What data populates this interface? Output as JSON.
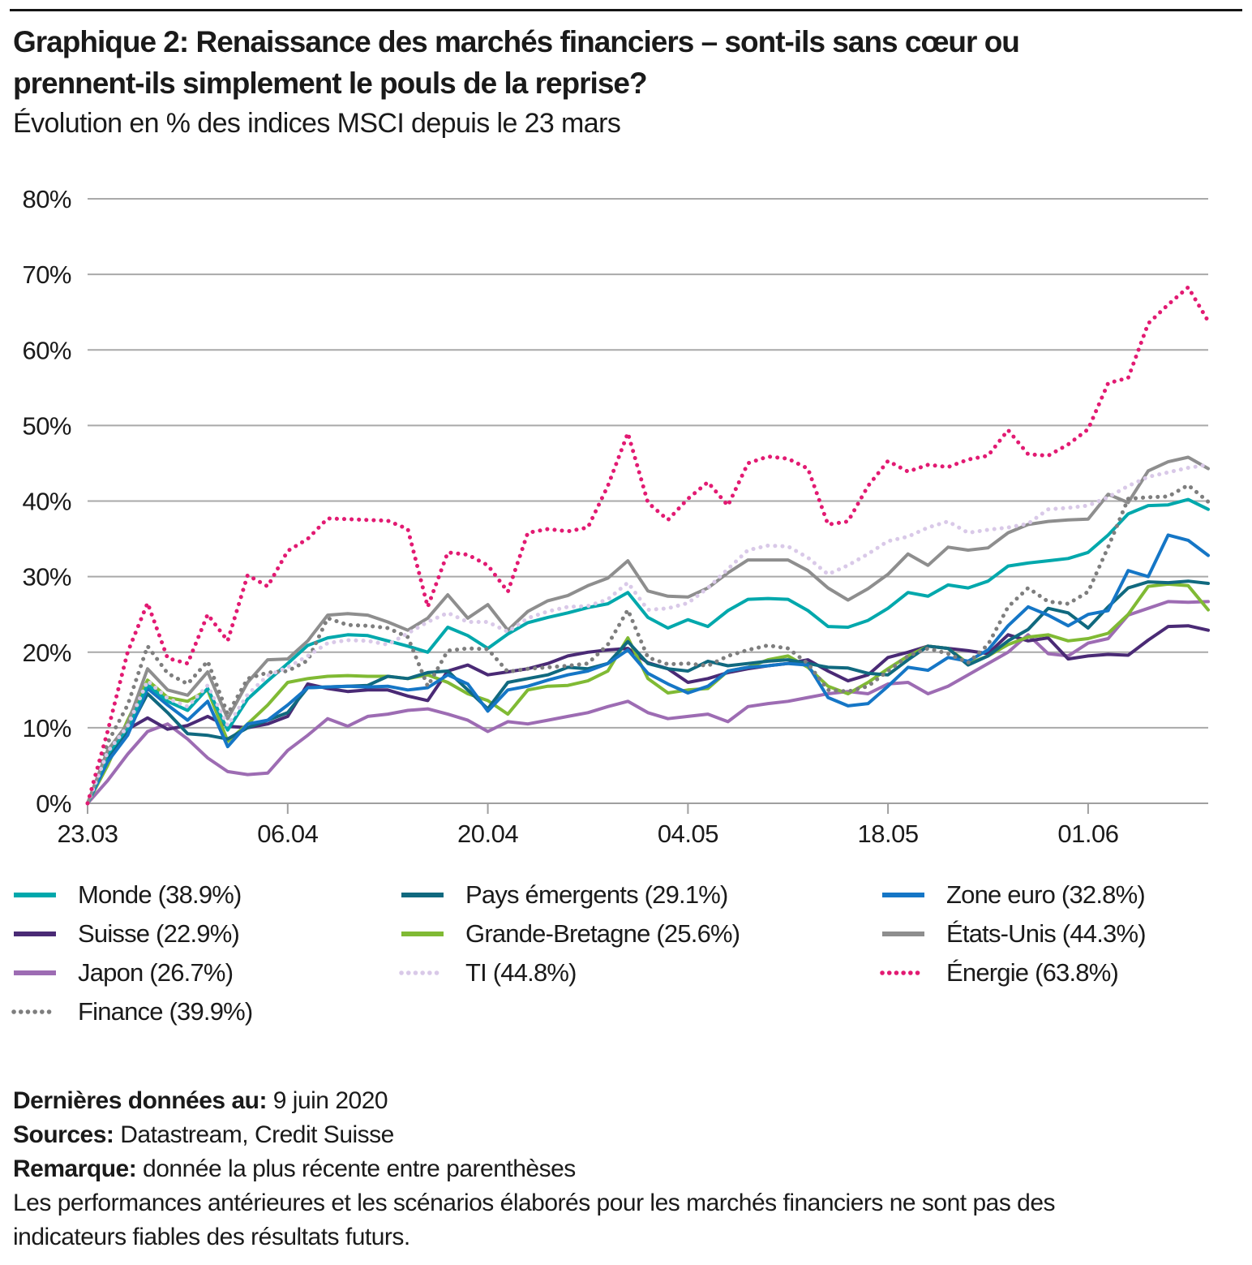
{
  "page": {
    "title_line1": "Graphique 2: Renaissance des marchés financiers – sont-ils sans cœur ou",
    "title_line2": "prennent-ils simplement le pouls de la reprise?",
    "subtitle": "Évolution en % des indices MSCI depuis le 23 mars"
  },
  "chart_data": {
    "type": "line",
    "title": "Graphique 2: Renaissance des marchés financiers – sont-ils sans cœur ou prennent-ils simplement le pouls de la reprise?",
    "subtitle": "Évolution en % des indices MSCI depuis le 23 mars",
    "xlabel": "",
    "ylabel": "",
    "ylim": [
      0,
      80
    ],
    "grid": true,
    "legend_position": "bottom",
    "n_points": 57,
    "x_unit": "jours ouvrés depuis le 23.03.2020 (dernier point: 09.06.2020)",
    "yticks": [
      {
        "value": 0,
        "label": "0%"
      },
      {
        "value": 10,
        "label": "10%"
      },
      {
        "value": 20,
        "label": "20%"
      },
      {
        "value": 30,
        "label": "30%"
      },
      {
        "value": 40,
        "label": "40%"
      },
      {
        "value": 50,
        "label": "50%"
      },
      {
        "value": 60,
        "label": "60%"
      },
      {
        "value": 70,
        "label": "70%"
      },
      {
        "value": 80,
        "label": "80%"
      }
    ],
    "xticks": [
      {
        "day": 0,
        "label": "23.03"
      },
      {
        "day": 10,
        "label": "06.04"
      },
      {
        "day": 20,
        "label": "20.04"
      },
      {
        "day": 30,
        "label": "04.05"
      },
      {
        "day": 40,
        "label": "18.05"
      },
      {
        "day": 50,
        "label": "01.06"
      }
    ],
    "draw_order": [
      "Japon",
      "Suisse",
      "Grande-Bretagne",
      "Pays émergents",
      "Zone euro",
      "Monde",
      "États-Unis",
      "Finance",
      "TI",
      "Énergie"
    ],
    "legend_columns": [
      [
        "Monde",
        "Suisse",
        "Japon",
        "Finance"
      ],
      [
        "Pays émergents",
        "Grande-Bretagne",
        "TI"
      ],
      [
        "Zone euro",
        "États-Unis",
        "Énergie"
      ]
    ],
    "series": [
      {
        "name": "Monde",
        "label": "Monde (38.9%)",
        "final_value": 38.9,
        "color": "#00a8ac",
        "dotted": false,
        "values": [
          0,
          6.5,
          10,
          15.7,
          13.5,
          12.3,
          15.2,
          9.7,
          13.8,
          16.2,
          18.5,
          20.9,
          21.9,
          22.3,
          22.2,
          21.5,
          20.8,
          20,
          23.3,
          22.2,
          20.5,
          22.4,
          23.9,
          24.6,
          25.2,
          25.9,
          26.4,
          27.9,
          24.6,
          23.2,
          24.3,
          23.4,
          25.5,
          27,
          27.1,
          27,
          25.5,
          23.4,
          23.3,
          24.2,
          25.8,
          27.9,
          27.4,
          28.9,
          28.5,
          29.4,
          31.4,
          31.8,
          32.1,
          32.4,
          33.2,
          35.5,
          38.3,
          39.4,
          39.5,
          40.2,
          38.9
        ]
      },
      {
        "name": "Pays émergents",
        "label": "Pays émergents (29.1%)",
        "final_value": 29.1,
        "color": "#10697f",
        "dotted": false,
        "values": [
          0,
          6,
          9.5,
          14.5,
          12,
          9.2,
          9,
          8.5,
          10,
          11,
          12,
          15.3,
          15.4,
          15.5,
          15.6,
          16.8,
          16.5,
          17.3,
          17.5,
          15,
          12.5,
          16,
          16.5,
          17,
          18,
          17.8,
          18.5,
          21.4,
          18.5,
          17.8,
          17.5,
          18.8,
          18.2,
          18.5,
          18.8,
          19,
          18.5,
          18,
          17.9,
          17.2,
          17,
          19,
          20.8,
          20.5,
          18.3,
          19.5,
          21.5,
          23,
          25.8,
          25.2,
          23.2,
          26,
          28.5,
          29.3,
          29.2,
          29.4,
          29.1
        ]
      },
      {
        "name": "Zone euro",
        "label": "Zone euro (32.8%)",
        "final_value": 32.8,
        "color": "#1576c6",
        "dotted": false,
        "values": [
          0,
          5.5,
          9,
          15.2,
          13,
          11,
          13.5,
          7.5,
          10.5,
          11,
          13,
          15.3,
          15.4,
          15.5,
          15.4,
          15.5,
          15,
          15.3,
          17,
          15.8,
          12.2,
          15,
          15.5,
          16.3,
          17,
          17.5,
          18.5,
          20.3,
          17.2,
          15.8,
          14.6,
          15.5,
          17.5,
          18,
          18.2,
          18.5,
          18.3,
          14,
          12.9,
          13.2,
          15.5,
          18,
          17.6,
          19.3,
          18.8,
          20.3,
          23.5,
          26,
          24.9,
          23.5,
          25,
          25.5,
          30.8,
          30,
          35.5,
          34.8,
          32.8
        ]
      },
      {
        "name": "Suisse",
        "label": "Suisse (22.9%)",
        "final_value": 22.9,
        "color": "#4a2a75",
        "dotted": false,
        "values": [
          0,
          6,
          9.8,
          11.3,
          9.8,
          10.3,
          11.5,
          10.2,
          10,
          10.5,
          11.5,
          15.8,
          15.2,
          14.8,
          15,
          15,
          14.2,
          13.6,
          17.5,
          18.3,
          17,
          17.4,
          17.8,
          18.5,
          19.5,
          20,
          20.3,
          20.5,
          18.6,
          17.8,
          16,
          16.5,
          17.3,
          17.8,
          18.2,
          18.5,
          19,
          17.5,
          16.2,
          17,
          19.3,
          20,
          20.8,
          20.5,
          20.2,
          19.8,
          22.3,
          21.5,
          21.9,
          19.1,
          19.5,
          19.7,
          19.6,
          21.6,
          23.4,
          23.5,
          22.9
        ]
      },
      {
        "name": "Grande-Bretagne",
        "label": "Grande-Bretagne (25.6%)",
        "final_value": 25.6,
        "color": "#80ba34",
        "dotted": false,
        "values": [
          0,
          5,
          11,
          16.3,
          14,
          13.5,
          15,
          8.2,
          10.5,
          13,
          16,
          16.5,
          16.8,
          16.9,
          16.8,
          16.8,
          16.5,
          17,
          16,
          14.5,
          13.6,
          11.8,
          15,
          15.5,
          15.6,
          16.2,
          17.5,
          21.9,
          16.5,
          14.6,
          15,
          15.2,
          17.5,
          18,
          19,
          19.5,
          18,
          15.5,
          14.5,
          16,
          17.8,
          19.5,
          20.8,
          20.5,
          18.5,
          19.5,
          21,
          22,
          22.3,
          21.5,
          21.8,
          22.5,
          25,
          28.7,
          29,
          28.8,
          25.6
        ]
      },
      {
        "name": "États-Unis",
        "label": "États-Unis (44.3%)",
        "final_value": 44.3,
        "color": "#8e8e8e",
        "dotted": false,
        "values": [
          0,
          7,
          10.5,
          17.8,
          15,
          14.3,
          17.4,
          11.2,
          16,
          19,
          19.1,
          21.5,
          24.9,
          25.1,
          24.9,
          24,
          22.9,
          24.5,
          27.6,
          24.5,
          26.3,
          22.9,
          25.4,
          26.8,
          27.5,
          28.8,
          29.8,
          32.1,
          28.1,
          27.4,
          27.3,
          28.5,
          30.5,
          32.2,
          32.2,
          32.2,
          30.8,
          28.5,
          26.9,
          28.4,
          30.3,
          33,
          31.5,
          33.9,
          33.5,
          33.8,
          35.8,
          36.9,
          37.3,
          37.5,
          37.6,
          40.9,
          39.8,
          44,
          45.2,
          45.8,
          44.3
        ]
      },
      {
        "name": "Japon",
        "label": "Japon (26.7%)",
        "final_value": 26.7,
        "color": "#9d6cb3",
        "dotted": false,
        "values": [
          0,
          3,
          6.5,
          9.5,
          10.5,
          8.5,
          6,
          4.2,
          3.8,
          4,
          7,
          9,
          11.2,
          10.2,
          11.5,
          11.8,
          12.3,
          12.5,
          11.8,
          11,
          9.5,
          10.8,
          10.5,
          11,
          11.5,
          12,
          12.8,
          13.5,
          12,
          11.2,
          11.5,
          11.8,
          10.8,
          12.8,
          13.2,
          13.5,
          14,
          14.5,
          14.8,
          14.5,
          15.8,
          16,
          14.5,
          15.5,
          17,
          18.5,
          20,
          22.3,
          19.8,
          19.5,
          21.2,
          21.8,
          24.9,
          25.8,
          26.7,
          26.6,
          26.7
        ]
      },
      {
        "name": "TI",
        "label": "TI (44.8%)",
        "final_value": 44.8,
        "color": "#d9c9e8",
        "dotted": true,
        "values": [
          0,
          6.8,
          10.2,
          16.2,
          13.9,
          12.8,
          15.6,
          10.3,
          14.4,
          16.9,
          18,
          19.5,
          21.2,
          21.6,
          21.5,
          21,
          22.5,
          24,
          25.2,
          24,
          24,
          22.7,
          24.5,
          25.4,
          26,
          26.1,
          27,
          29.2,
          25.6,
          25.8,
          26.5,
          28.5,
          31,
          33.5,
          34.1,
          34,
          32.5,
          30.3,
          31.5,
          33,
          34.7,
          35.3,
          36.5,
          37.3,
          35.8,
          36.2,
          36.5,
          37,
          38.9,
          39.1,
          39.4,
          40.5,
          42,
          43.2,
          43.8,
          44.4,
          44.8
        ]
      },
      {
        "name": "Énergie",
        "label": "Énergie (63.8%)",
        "final_value": 63.8,
        "color": "#e21a72",
        "dotted": true,
        "values": [
          0,
          9.5,
          20,
          26.5,
          19.2,
          18.5,
          25,
          21.5,
          30.2,
          28.7,
          33.4,
          35,
          37.7,
          37.6,
          37.5,
          37.4,
          36.3,
          26,
          33.2,
          32.9,
          31.5,
          28,
          35.8,
          36.3,
          36,
          36.5,
          42,
          49,
          39.8,
          37.5,
          40.3,
          42.5,
          39.4,
          45,
          45.9,
          45.6,
          44.3,
          36.9,
          37.3,
          42,
          45.3,
          43.9,
          44.8,
          44.5,
          45.5,
          46,
          49.4,
          46.2,
          46,
          47.5,
          49.5,
          55.6,
          56.3,
          63.5,
          66,
          68.3,
          63.8
        ]
      },
      {
        "name": "Finance",
        "label": "Finance (39.9%)",
        "final_value": 39.9,
        "color": "#7e7e7e",
        "dotted": true,
        "values": [
          0,
          8,
          13,
          20.8,
          17.2,
          15.8,
          18.8,
          11.8,
          16.5,
          17.3,
          17.5,
          18.9,
          24.5,
          23.6,
          23.5,
          23.2,
          22,
          15.5,
          20.2,
          20.5,
          20.4,
          17.4,
          17.8,
          18,
          18.2,
          18.5,
          21,
          25.6,
          19.3,
          18.4,
          18.5,
          18.2,
          19.5,
          20.3,
          20.9,
          20.5,
          18.5,
          15,
          14.8,
          15.5,
          17.5,
          19.5,
          20.5,
          19.8,
          18.6,
          21,
          26,
          28.5,
          26.7,
          26.4,
          28,
          33.9,
          40.3,
          40.5,
          40.6,
          42.1,
          39.9
        ]
      }
    ],
    "colors": {
      "grid": "#a9a9a9",
      "axis": "#9f9f9f",
      "text": "#1a1a1a"
    }
  },
  "footer": {
    "lines": [
      {
        "label": "Dernières données au:",
        "text": " 9 juin 2020"
      },
      {
        "label": "Sources:",
        "text": " Datastream, Credit Suisse"
      },
      {
        "label": "Remarque:",
        "text": " donnée la plus récente entre parenthèses"
      }
    ],
    "disclaimer": "Les performances antérieures et les scénarios élaborés pour les marchés financiers ne sont pas des indicateurs fiables des résultats futurs."
  }
}
